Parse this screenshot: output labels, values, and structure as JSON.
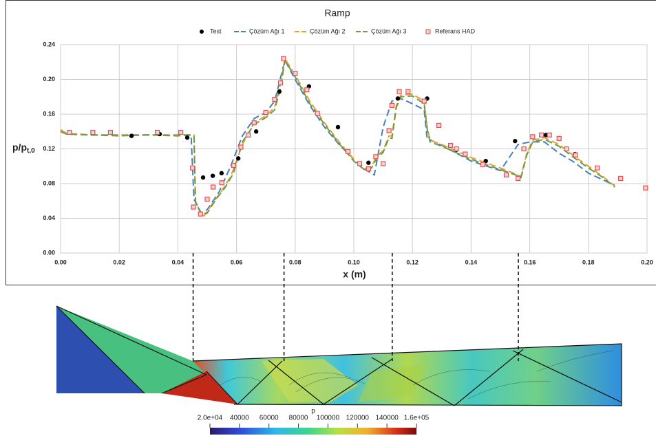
{
  "chart_data": {
    "type": "line",
    "title": "Ramp",
    "x_label": "x (m)",
    "y_label": "p/p",
    "y_label_sub": "t,0",
    "xlim": [
      0,
      0.2
    ],
    "ylim": [
      0,
      0.24
    ],
    "xticks": [
      {
        "value": 0,
        "label": "0.00"
      },
      {
        "value": 0.02,
        "label": "0.02"
      },
      {
        "value": 0.04,
        "label": "0.04"
      },
      {
        "value": 0.06,
        "label": "0.06"
      },
      {
        "value": 0.08,
        "label": "0.08"
      },
      {
        "value": 0.1,
        "label": "0.10"
      },
      {
        "value": 0.12,
        "label": "0.12"
      },
      {
        "value": 0.14,
        "label": "0.14"
      },
      {
        "value": 0.16,
        "label": "0.16"
      },
      {
        "value": 0.18,
        "label": "0.18"
      },
      {
        "value": 0.2,
        "label": "0.20"
      }
    ],
    "yticks": [
      {
        "value": 0,
        "label": "0.00"
      },
      {
        "value": 0.04,
        "label": "0.04"
      },
      {
        "value": 0.08,
        "label": "0.08"
      },
      {
        "value": 0.12,
        "label": "0.12"
      },
      {
        "value": 0.16,
        "label": "0.16"
      },
      {
        "value": 0.2,
        "label": "0.20"
      },
      {
        "value": 0.24,
        "label": "0.24"
      }
    ],
    "grid": true,
    "legend": "top",
    "reference_lines": [
      0.0452,
      0.0762,
      0.1131,
      0.1561
    ],
    "series": [
      {
        "name": "Test",
        "color": "#000000",
        "marker": "circle",
        "x": [
          0.0242,
          0.0338,
          0.0432,
          0.0486,
          0.0519,
          0.0549,
          0.0606,
          0.0667,
          0.0746,
          0.0847,
          0.0946,
          0.105,
          0.115,
          0.125,
          0.135,
          0.145,
          0.155,
          0.1655,
          0.1754
        ],
        "values": [
          0.135,
          0.137,
          0.133,
          0.087,
          0.089,
          0.092,
          0.109,
          0.14,
          0.186,
          0.192,
          0.145,
          0.104,
          0.178,
          0.178,
          0.119,
          0.106,
          0.129,
          0.136,
          0.114
        ]
      },
      {
        "name": "Çözüm Ağı 1",
        "color": "#4a7ebb",
        "marker": "dashed",
        "x": [
          0,
          0.002,
          0.01,
          0.02,
          0.03,
          0.04,
          0.0445,
          0.0455,
          0.048,
          0.05,
          0.054,
          0.058,
          0.062,
          0.066,
          0.07,
          0.073,
          0.0765,
          0.08,
          0.085,
          0.09,
          0.095,
          0.1,
          0.104,
          0.107,
          0.11,
          0.113,
          0.116,
          0.12,
          0.124,
          0.125,
          0.13,
          0.14,
          0.15,
          0.153,
          0.156,
          0.16,
          0.165,
          0.17,
          0.175,
          0.18,
          0.189
        ],
        "values": [
          0.142,
          0.138,
          0.136,
          0.136,
          0.136,
          0.136,
          0.136,
          0.062,
          0.046,
          0.05,
          0.07,
          0.1,
          0.135,
          0.155,
          0.162,
          0.175,
          0.222,
          0.2,
          0.17,
          0.145,
          0.125,
          0.108,
          0.096,
          0.09,
          0.145,
          0.175,
          0.178,
          0.172,
          0.165,
          0.132,
          0.124,
          0.106,
          0.095,
          0.11,
          0.125,
          0.128,
          0.128,
          0.115,
          0.105,
          0.092,
          0.078
        ]
      },
      {
        "name": "Çözüm Ağı 2",
        "color": "#e8a030",
        "marker": "dashed",
        "x": [
          0,
          0.002,
          0.01,
          0.02,
          0.03,
          0.04,
          0.044,
          0.0455,
          0.046,
          0.048,
          0.049,
          0.052,
          0.055,
          0.058,
          0.062,
          0.066,
          0.07,
          0.073,
          0.075,
          0.0765,
          0.08,
          0.085,
          0.09,
          0.095,
          0.1,
          0.104,
          0.106,
          0.108,
          0.11,
          0.112,
          0.113,
          0.1145,
          0.116,
          0.12,
          0.124,
          0.125,
          0.126,
          0.13,
          0.14,
          0.15,
          0.156,
          0.157,
          0.159,
          0.161,
          0.165,
          0.17,
          0.175,
          0.18,
          0.185,
          0.189
        ],
        "values": [
          0.142,
          0.138,
          0.136,
          0.136,
          0.136,
          0.136,
          0.136,
          0.136,
          0.06,
          0.044,
          0.043,
          0.058,
          0.072,
          0.088,
          0.125,
          0.15,
          0.158,
          0.168,
          0.195,
          0.224,
          0.205,
          0.175,
          0.15,
          0.128,
          0.108,
          0.097,
          0.1,
          0.112,
          0.118,
          0.135,
          0.135,
          0.17,
          0.182,
          0.183,
          0.175,
          0.145,
          0.13,
          0.125,
          0.11,
          0.098,
          0.09,
          0.088,
          0.115,
          0.13,
          0.133,
          0.125,
          0.112,
          0.1,
          0.088,
          0.077
        ]
      },
      {
        "name": "Çözüm Ağı 3",
        "color": "#6a9a48",
        "marker": "dashed",
        "x": [
          0,
          0.002,
          0.01,
          0.02,
          0.03,
          0.04,
          0.044,
          0.0455,
          0.046,
          0.048,
          0.05,
          0.053,
          0.056,
          0.059,
          0.062,
          0.066,
          0.07,
          0.073,
          0.075,
          0.0765,
          0.08,
          0.085,
          0.09,
          0.095,
          0.1,
          0.104,
          0.106,
          0.108,
          0.11,
          0.112,
          0.113,
          0.1145,
          0.116,
          0.12,
          0.124,
          0.125,
          0.126,
          0.13,
          0.14,
          0.15,
          0.156,
          0.157,
          0.159,
          0.161,
          0.165,
          0.17,
          0.175,
          0.18,
          0.185,
          0.189
        ],
        "values": [
          0.14,
          0.137,
          0.136,
          0.135,
          0.136,
          0.135,
          0.136,
          0.135,
          0.058,
          0.045,
          0.046,
          0.062,
          0.075,
          0.092,
          0.128,
          0.148,
          0.156,
          0.165,
          0.19,
          0.222,
          0.203,
          0.172,
          0.148,
          0.126,
          0.106,
          0.095,
          0.098,
          0.11,
          0.116,
          0.133,
          0.132,
          0.168,
          0.18,
          0.181,
          0.172,
          0.143,
          0.128,
          0.123,
          0.108,
          0.096,
          0.089,
          0.087,
          0.113,
          0.128,
          0.131,
          0.123,
          0.11,
          0.098,
          0.087,
          0.076
        ]
      },
      {
        "name": "Referans HAD",
        "color": "#e05050",
        "marker": "square",
        "x": [
          0.003,
          0.011,
          0.017,
          0.033,
          0.041,
          0.045,
          0.0453,
          0.0477,
          0.05,
          0.052,
          0.055,
          0.059,
          0.0615,
          0.064,
          0.066,
          0.07,
          0.073,
          0.075,
          0.076,
          0.08,
          0.084,
          0.0876,
          0.098,
          0.102,
          0.105,
          0.1075,
          0.11,
          0.112,
          0.113,
          0.1155,
          0.1185,
          0.124,
          0.129,
          0.133,
          0.135,
          0.138,
          0.144,
          0.152,
          0.156,
          0.158,
          0.161,
          0.164,
          0.1667,
          0.17,
          0.1725,
          0.1756,
          0.183,
          0.191,
          0.1995
        ],
        "values": [
          0.139,
          0.139,
          0.139,
          0.139,
          0.139,
          0.098,
          0.053,
          0.045,
          0.062,
          0.076,
          0.081,
          0.101,
          0.122,
          0.136,
          0.15,
          0.162,
          0.177,
          0.196,
          0.224,
          0.207,
          0.188,
          0.161,
          0.117,
          0.103,
          0.097,
          0.111,
          0.103,
          0.141,
          0.17,
          0.186,
          0.186,
          0.175,
          0.147,
          0.124,
          0.12,
          0.114,
          0.102,
          0.09,
          0.086,
          0.12,
          0.134,
          0.136,
          0.136,
          0.132,
          0.12,
          0.113,
          0.098,
          0.086,
          0.075
        ]
      }
    ],
    "colorbar": {
      "label": "p",
      "clim": [
        20000,
        160000
      ],
      "ticks": [
        {
          "value": 20000,
          "label": "2.0e+04"
        },
        40000,
        60000,
        80000,
        100000,
        120000,
        140000,
        {
          "value": 160000,
          "label": "1.6e+05"
        }
      ]
    }
  }
}
